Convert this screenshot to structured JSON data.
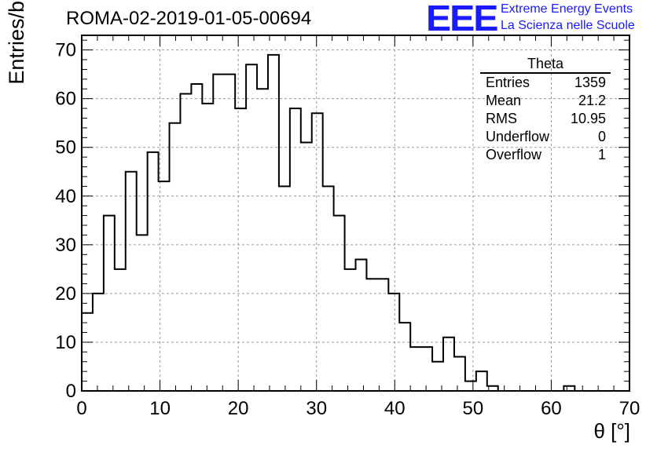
{
  "header": {
    "title": "ROMA-02-2019-01-05-00694",
    "logo_text": "EEE",
    "brand_line1": "Extreme Energy Events",
    "brand_line2": "La Scienza nelle Scuole"
  },
  "stats_box": {
    "title": "Theta",
    "rows": [
      {
        "label": "Entries",
        "value": "1359"
      },
      {
        "label": "Mean",
        "value": "21.2"
      },
      {
        "label": "RMS",
        "value": "10.95"
      },
      {
        "label": "Underflow",
        "value": "0"
      },
      {
        "label": "Overflow",
        "value": "1"
      }
    ]
  },
  "colors": {
    "brand": "#1a1aff",
    "line": "#000000",
    "grid": "#9a9a9a"
  },
  "chart_data": {
    "type": "bar",
    "style": "step-histogram",
    "xlabel": "θ [°]",
    "ylabel": "Entries/bin",
    "xlim": [
      0,
      70
    ],
    "ylim": [
      0,
      73
    ],
    "grid": true,
    "x_ticks": [
      0,
      10,
      20,
      30,
      40,
      50,
      60,
      70
    ],
    "y_ticks": [
      0,
      10,
      20,
      30,
      40,
      50,
      60,
      70
    ],
    "bin_edges": [
      0,
      1.4,
      2.8,
      4.2,
      5.6,
      7,
      8.4,
      9.8,
      11.2,
      12.6,
      14,
      15.4,
      16.8,
      18.2,
      19.6,
      21,
      22.4,
      23.8,
      25.2,
      26.6,
      28,
      29.4,
      30.8,
      32.2,
      33.6,
      35,
      36.4,
      37.8,
      39.2,
      40.6,
      42,
      43.4,
      44.8,
      46.2,
      47.6,
      49,
      50.4,
      51.8,
      53.2,
      54.6,
      56,
      57.4,
      58.8,
      60.2,
      61.6,
      63,
      64.4,
      65.8,
      67.2,
      68.6,
      70
    ],
    "values": [
      16,
      20,
      36,
      25,
      45,
      32,
      49,
      43,
      55,
      61,
      63,
      59,
      65,
      65,
      58,
      67,
      62,
      69,
      42,
      58,
      51,
      57,
      42,
      36,
      25,
      27,
      23,
      23,
      20,
      14,
      9,
      9,
      6,
      11,
      7,
      2,
      4,
      1,
      0,
      0,
      0,
      0,
      0,
      0,
      1,
      0,
      0,
      0,
      0,
      0
    ]
  }
}
